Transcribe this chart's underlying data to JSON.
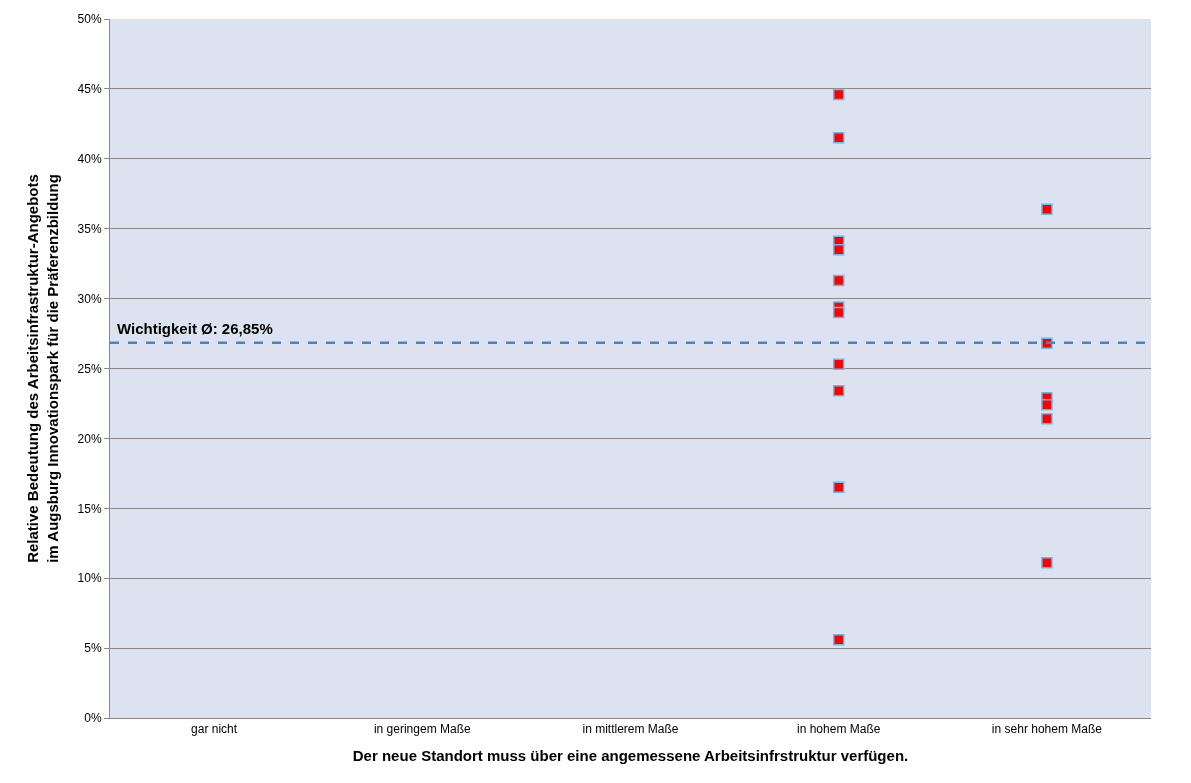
{
  "chart_data": {
    "type": "scatter",
    "xlabel": "Der neue Standort muss über eine angemessene Arbeitsinfrstruktur verfügen.",
    "ylabel": "Relative Bedeutung des Arbeitsinfrastruktur-Angebots\nim Augsburg Innovationspark für die Präferenzbildung",
    "categories": [
      "gar nicht",
      "in geringem Maße",
      "in mittlerem Maße",
      "in hohem Maße",
      "in sehr hohem Maße"
    ],
    "series": [
      {
        "color": "#ff0000",
        "x": [
          "in hohem Maße",
          "in hohem Maße",
          "in hohem Maße",
          "in hohem Maße",
          "in hohem Maße",
          "in hohem Maße",
          "in hohem Maße",
          "in hohem Maße",
          "in hohem Maße",
          "in hohem Maße",
          "in hohem Maße",
          "in sehr hohem Maße",
          "in sehr hohem Maße",
          "in sehr hohem Maße",
          "in sehr hohem Maße",
          "in sehr hohem Maße",
          "in sehr hohem Maße"
        ],
        "values": [
          44.6,
          41.5,
          34.1,
          33.5,
          31.3,
          29.4,
          29.0,
          25.3,
          23.4,
          16.5,
          5.6,
          36.4,
          26.8,
          22.9,
          22.4,
          21.4,
          11.1
        ]
      }
    ],
    "ylim": [
      0,
      50
    ],
    "yticks": [
      {
        "value": 0,
        "label": "0%"
      },
      {
        "value": 5,
        "label": "5%"
      },
      {
        "value": 10,
        "label": "10%"
      },
      {
        "value": 15,
        "label": "15%"
      },
      {
        "value": 20,
        "label": "20%"
      },
      {
        "value": 25,
        "label": "25%"
      },
      {
        "value": 30,
        "label": "30%"
      },
      {
        "value": 35,
        "label": "35%"
      },
      {
        "value": 40,
        "label": "40%"
      },
      {
        "value": 45,
        "label": "45%"
      },
      {
        "value": 50,
        "label": "50%"
      }
    ],
    "ref_lines": [
      {
        "axis": "y",
        "value": 26.85,
        "label": "Wichtigkeit Ø: 26,85%",
        "color": "#4f81bd",
        "line_style": "dashed"
      }
    ],
    "grid": "y",
    "marker": "square"
  }
}
